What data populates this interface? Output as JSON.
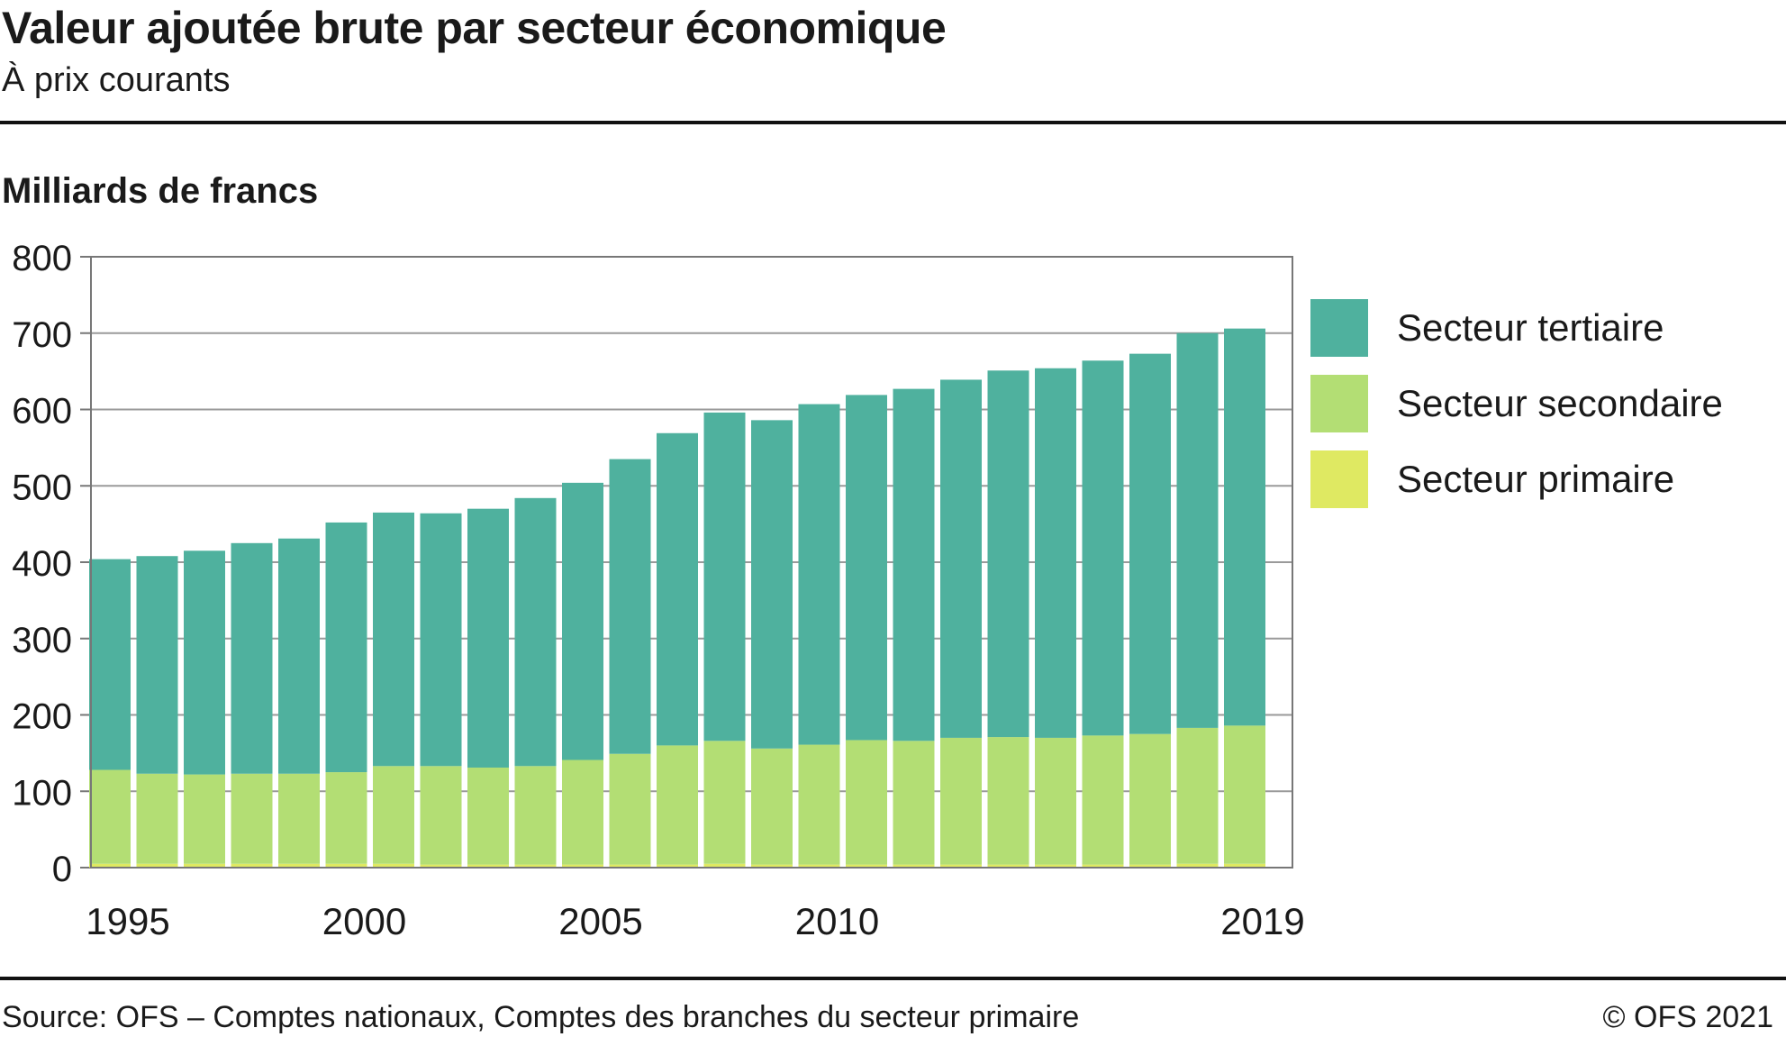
{
  "header": {
    "title": "Valeur ajoutée brute par secteur économique",
    "subtitle": "À prix courants"
  },
  "footer": {
    "source": "Source: OFS – Comptes nationaux, Comptes des branches du secteur primaire",
    "copyright": "© OFS 2021"
  },
  "colors": {
    "tertiaire": "#4fb19e",
    "secondaire": "#b3de74",
    "primaire": "#dfe962",
    "grid": "#9a9a9a",
    "axis": "#777777"
  },
  "chart_data": {
    "type": "bar",
    "stacked": true,
    "ylabel": "Milliards de francs",
    "ylim": [
      0,
      800
    ],
    "yticks": [
      0,
      100,
      200,
      300,
      400,
      500,
      600,
      700,
      800
    ],
    "xtick_labels": [
      "1995",
      "2000",
      "2005",
      "2010",
      "2019"
    ],
    "categories": [
      "1995",
      "1996",
      "1997",
      "1998",
      "1999",
      "2000",
      "2001",
      "2002",
      "2003",
      "2004",
      "2005",
      "2006",
      "2007",
      "2008",
      "2009",
      "2010",
      "2011",
      "2012",
      "2013",
      "2014",
      "2015",
      "2016",
      "2017",
      "2018",
      "2019"
    ],
    "grid": true,
    "legend_position": "right",
    "series": [
      {
        "name": "Secteur primaire",
        "color_key": "primaire",
        "values": [
          5,
          5,
          5,
          5,
          5,
          5,
          5,
          4,
          4,
          4,
          4,
          4,
          4,
          5,
          4,
          4,
          4,
          4,
          4,
          4,
          4,
          4,
          4,
          5,
          5
        ]
      },
      {
        "name": "Secteur secondaire",
        "color_key": "secondaire",
        "values": [
          123,
          118,
          117,
          118,
          118,
          120,
          128,
          129,
          127,
          129,
          137,
          145,
          156,
          161,
          152,
          157,
          163,
          162,
          166,
          167,
          166,
          169,
          171,
          178,
          181
        ]
      },
      {
        "name": "Secteur tertiaire",
        "color_key": "tertiaire",
        "values": [
          276,
          285,
          293,
          302,
          308,
          327,
          332,
          331,
          339,
          351,
          363,
          386,
          409,
          430,
          430,
          446,
          452,
          461,
          469,
          480,
          484,
          491,
          498,
          517,
          520
        ]
      }
    ]
  }
}
